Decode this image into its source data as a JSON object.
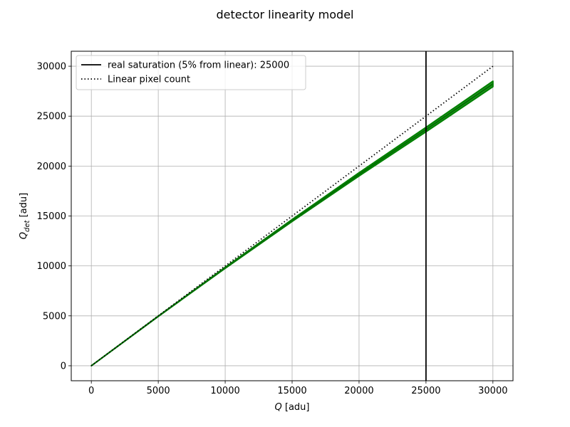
{
  "chart_data": {
    "type": "line",
    "title": "detector linearity model",
    "xlabel": "$Q$ [adu]",
    "ylabel": "$Q_{det}$ [adu]",
    "xlim": [
      -1500,
      31500
    ],
    "ylim": [
      -1500,
      31500
    ],
    "xticks": [
      0,
      5000,
      10000,
      15000,
      20000,
      25000,
      30000
    ],
    "yticks": [
      0,
      5000,
      10000,
      15000,
      20000,
      25000,
      30000
    ],
    "grid": true,
    "legend_position": "top-left",
    "saturation_line": {
      "name": "real saturation (5% from linear): 25000",
      "x": 25000,
      "color": "#000000",
      "style": "solid"
    },
    "series": [
      {
        "name": "Linear pixel count",
        "color": "#000000",
        "style": "dotted",
        "x": [
          0,
          30000
        ],
        "y": [
          0,
          30000
        ]
      },
      {
        "name": "",
        "color": "#008000",
        "style": "band",
        "x": [
          0,
          5000,
          10000,
          15000,
          20000,
          25000,
          30000
        ],
        "y_low": [
          0,
          4940,
          9760,
          14450,
          19010,
          23430,
          27950
        ],
        "y_high": [
          0,
          4970,
          9860,
          14650,
          19330,
          23880,
          28500
        ]
      }
    ]
  }
}
